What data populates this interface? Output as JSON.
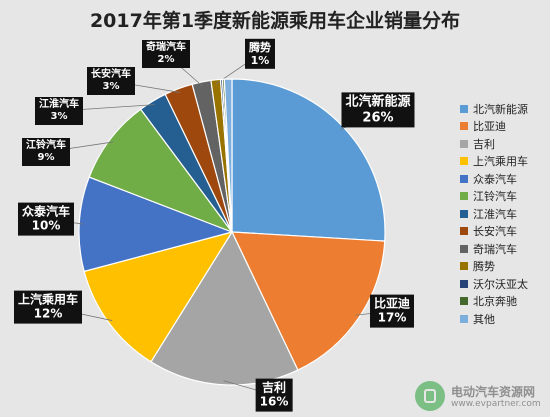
{
  "chart_data": {
    "type": "pie",
    "title": "2017年第1季度新能源乘用车企业销量分布",
    "legend_position": "right",
    "slices": [
      {
        "name": "北汽新能源",
        "value": 26,
        "label": "26%",
        "color": "#5b9bd5"
      },
      {
        "name": "比亚迪",
        "value": 17,
        "label": "17%",
        "color": "#ed7d31"
      },
      {
        "name": "吉利",
        "value": 16,
        "label": "16%",
        "color": "#a5a5a5"
      },
      {
        "name": "上汽乘用车",
        "value": 12,
        "label": "12%",
        "color": "#ffc000"
      },
      {
        "name": "众泰汽车",
        "value": 10,
        "label": "10%",
        "color": "#4472c4"
      },
      {
        "name": "江铃汽车",
        "value": 9,
        "label": "9%",
        "color": "#70ad47"
      },
      {
        "name": "江淮汽车",
        "value": 3,
        "label": "3%",
        "color": "#255e91"
      },
      {
        "name": "长安汽车",
        "value": 3,
        "label": "3%",
        "color": "#9e480e"
      },
      {
        "name": "奇瑞汽车",
        "value": 2,
        "label": "2%",
        "color": "#636363"
      },
      {
        "name": "腾势",
        "value": 1,
        "label": "1%",
        "color": "#997300"
      },
      {
        "name": "沃尔沃亚太",
        "value": 0.2,
        "label": "",
        "color": "#264478"
      },
      {
        "name": "北京奔驰",
        "value": 0.2,
        "label": "",
        "color": "#43682b"
      },
      {
        "name": "其他",
        "value": 0.8,
        "label": "",
        "color": "#7cafdd"
      }
    ]
  },
  "watermark": {
    "name": "电动汽车资源网",
    "url": "www.evpartner.com",
    "icon": "ev-plug-icon"
  }
}
